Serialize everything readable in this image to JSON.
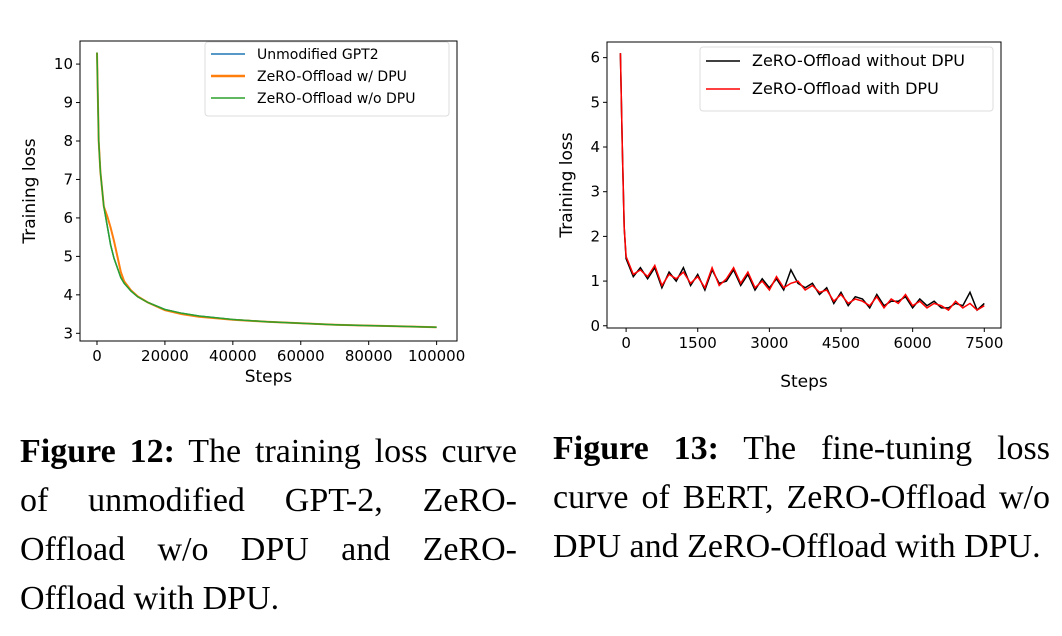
{
  "chart_data": [
    {
      "type": "line",
      "xlabel": "Steps",
      "ylabel": "Training loss",
      "xlim": [
        -5000,
        106000
      ],
      "ylim": [
        2.8,
        10.6
      ],
      "xticks": [
        0,
        20000,
        40000,
        60000,
        80000,
        100000
      ],
      "xtick_labels": [
        "0",
        "20000",
        "40000",
        "60000",
        "80000",
        "100000"
      ],
      "yticks": [
        3,
        4,
        5,
        6,
        7,
        8,
        9,
        10
      ],
      "grid": false,
      "legend_placement": "top-right",
      "x": [
        0,
        500,
        1000,
        2000,
        3000,
        4000,
        5000,
        6000,
        7000,
        8000,
        10000,
        12000,
        15000,
        20000,
        25000,
        30000,
        40000,
        50000,
        60000,
        70000,
        80000,
        90000,
        100000
      ],
      "series": [
        {
          "name": "Unmodified GPT2",
          "color": "#1f77b4",
          "values": [
            10.3,
            8.0,
            7.2,
            6.3,
            5.8,
            5.3,
            4.95,
            4.7,
            4.45,
            4.3,
            4.1,
            3.95,
            3.8,
            3.62,
            3.52,
            3.45,
            3.36,
            3.3,
            3.26,
            3.22,
            3.2,
            3.18,
            3.16
          ]
        },
        {
          "name": "ZeRO-Offload w/ DPU",
          "color": "#ff7f0e",
          "values": [
            10.3,
            8.0,
            7.2,
            6.3,
            6.05,
            5.75,
            5.4,
            5.0,
            4.6,
            4.35,
            4.12,
            3.96,
            3.8,
            3.6,
            3.5,
            3.43,
            3.35,
            3.3,
            3.26,
            3.22,
            3.2,
            3.18,
            3.16
          ]
        },
        {
          "name": "ZeRO-Offload w/o DPU",
          "color": "#2ca02c",
          "values": [
            10.3,
            8.0,
            7.2,
            6.3,
            5.8,
            5.3,
            4.95,
            4.7,
            4.45,
            4.3,
            4.1,
            3.95,
            3.8,
            3.62,
            3.52,
            3.45,
            3.36,
            3.3,
            3.26,
            3.22,
            3.2,
            3.18,
            3.16
          ]
        }
      ]
    },
    {
      "type": "line",
      "xlabel": "Steps",
      "ylabel": "Training loss",
      "xlim": [
        -400,
        7850
      ],
      "ylim": [
        -0.05,
        6.35
      ],
      "xticks": [
        0,
        1500,
        3000,
        4500,
        6000,
        7500
      ],
      "xtick_labels": [
        "0",
        "1500",
        "3000",
        "4500",
        "6000",
        "7500"
      ],
      "yticks": [
        0,
        1,
        2,
        3,
        4,
        5,
        6
      ],
      "grid": false,
      "legend_placement": "top-right",
      "x": [
        -120,
        -80,
        -40,
        0,
        150,
        300,
        450,
        600,
        750,
        900,
        1050,
        1200,
        1350,
        1500,
        1650,
        1800,
        1950,
        2100,
        2250,
        2400,
        2550,
        2700,
        2850,
        3000,
        3150,
        3300,
        3450,
        3600,
        3750,
        3900,
        4050,
        4200,
        4350,
        4500,
        4650,
        4800,
        4950,
        5100,
        5250,
        5400,
        5550,
        5700,
        5850,
        6000,
        6150,
        6300,
        6450,
        6600,
        6750,
        6900,
        7050,
        7200,
        7350,
        7500
      ],
      "series": [
        {
          "name": "ZeRO-Offload without DPU",
          "color": "#000000",
          "values": [
            6.1,
            4.0,
            2.2,
            1.5,
            1.1,
            1.3,
            1.05,
            1.3,
            0.85,
            1.2,
            1.0,
            1.3,
            0.9,
            1.15,
            0.8,
            1.25,
            0.95,
            1.0,
            1.25,
            0.9,
            1.15,
            0.8,
            1.05,
            0.85,
            1.05,
            0.8,
            1.25,
            0.95,
            0.85,
            0.95,
            0.7,
            0.85,
            0.5,
            0.75,
            0.45,
            0.65,
            0.6,
            0.4,
            0.7,
            0.45,
            0.55,
            0.55,
            0.65,
            0.4,
            0.6,
            0.45,
            0.55,
            0.4,
            0.4,
            0.5,
            0.45,
            0.75,
            0.35,
            0.5
          ]
        },
        {
          "name": "ZeRO-Offload with DPU",
          "color": "#ff0000",
          "values": [
            6.1,
            4.0,
            2.2,
            1.55,
            1.15,
            1.25,
            1.1,
            1.35,
            0.9,
            1.15,
            1.05,
            1.2,
            0.95,
            1.1,
            0.85,
            1.3,
            0.9,
            1.05,
            1.3,
            0.95,
            1.2,
            0.85,
            1.0,
            0.8,
            1.1,
            0.85,
            0.95,
            1.0,
            0.8,
            0.9,
            0.75,
            0.8,
            0.55,
            0.7,
            0.5,
            0.6,
            0.55,
            0.45,
            0.65,
            0.4,
            0.6,
            0.5,
            0.7,
            0.45,
            0.55,
            0.4,
            0.5,
            0.45,
            0.35,
            0.55,
            0.4,
            0.5,
            0.35,
            0.45
          ]
        }
      ]
    }
  ],
  "captions": [
    {
      "label": "Figure 12:",
      "text": " The training loss curve of unmodified GPT-2, ZeRO-Offload w/o DPU and ZeRO-Offload with DPU."
    },
    {
      "label": "Figure 13:",
      "text": " The fine-tuning loss curve of BERT, ZeRO-Offload w/o DPU and ZeRO-Offload with DPU."
    }
  ]
}
